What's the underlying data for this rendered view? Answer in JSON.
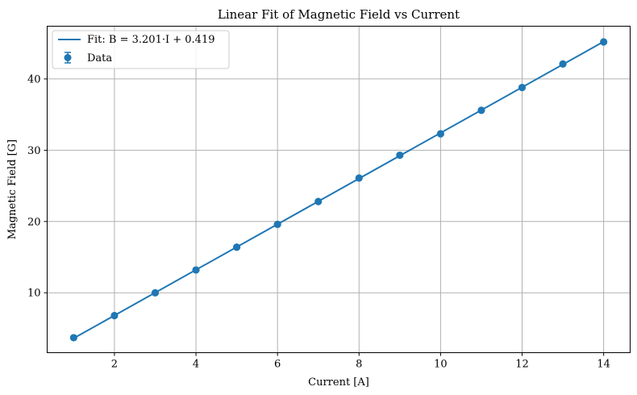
{
  "chart_data": {
    "type": "scatter",
    "title": "Linear Fit of Magnetic Field vs Current",
    "xlabel": "Current [A]",
    "ylabel": "Magnetic Field [G]",
    "xlim": [
      0.35,
      14.65
    ],
    "ylim": [
      1.6,
      47.4
    ],
    "xticks": [
      2,
      4,
      6,
      8,
      10,
      12,
      14
    ],
    "yticks": [
      10,
      20,
      30,
      40
    ],
    "grid": true,
    "legend_position": "top-left",
    "series": [
      {
        "name": "Data",
        "kind": "errorbar-markers",
        "color": "#1f77b4",
        "x": [
          1,
          2,
          3,
          4,
          5,
          6,
          7,
          8,
          9,
          10,
          11,
          12,
          13,
          14
        ],
        "y": [
          3.7,
          6.8,
          10.0,
          13.2,
          16.4,
          19.6,
          22.8,
          26.1,
          29.3,
          32.3,
          35.6,
          38.8,
          42.1,
          45.2
        ]
      },
      {
        "name": "Fit: B = 3.201·I + 0.419",
        "kind": "line",
        "color": "#1f77b4",
        "slope": 3.201,
        "intercept": 0.419
      }
    ]
  }
}
